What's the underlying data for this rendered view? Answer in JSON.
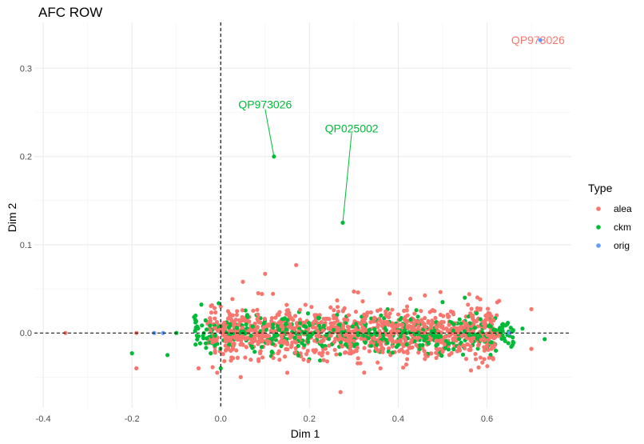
{
  "chart_data": {
    "type": "scatter",
    "title": "AFC ROW",
    "xlabel": "Dim 1",
    "ylabel": "Dim 2",
    "xlim": [
      -0.42,
      0.79
    ],
    "ylim": [
      -0.085,
      0.352
    ],
    "x_ticks": [
      -0.4,
      -0.2,
      0.0,
      0.2,
      0.4,
      0.6
    ],
    "x_tick_labels": [
      "-0.4",
      "-0.2",
      "0.0",
      "0.2",
      "0.4",
      "0.6"
    ],
    "y_ticks": [
      0.0,
      0.1,
      0.2,
      0.3
    ],
    "y_tick_labels": [
      "0.0",
      "0.1",
      "0.2",
      "0.3"
    ],
    "reference_lines": {
      "x": 0,
      "y": 0,
      "style": "dashed"
    },
    "grid": true,
    "legend": {
      "title": "Type",
      "placement": "right",
      "entries": [
        {
          "label": "alea",
          "color": "#F8766D"
        },
        {
          "label": "ckm",
          "color": "#00BA38"
        },
        {
          "label": "orig",
          "color": "#619CFF"
        }
      ]
    },
    "series": [
      {
        "name": "alea",
        "color": "#F8766D",
        "points": [
          {
            "x": -0.35,
            "y": 0.0
          },
          {
            "x": -0.19,
            "y": -0.04
          },
          {
            "x": -0.19,
            "y": 0.0
          },
          {
            "x": -0.05,
            "y": -0.04
          },
          {
            "x": 0.05,
            "y": 0.058
          },
          {
            "x": 0.1,
            "y": 0.067
          },
          {
            "x": 0.17,
            "y": 0.077
          },
          {
            "x": 0.045,
            "y": -0.05
          },
          {
            "x": 0.27,
            "y": -0.067
          },
          {
            "x": 0.56,
            "y": 0.044
          },
          {
            "x": 0.7,
            "y": 0.027
          },
          {
            "x": 0.7,
            "y": -0.018
          },
          {
            "x": 0.36,
            "y": -0.04
          },
          {
            "x": 0.15,
            "y": -0.045
          },
          {
            "x": 0.3,
            "y": 0.047
          },
          {
            "x": 0.42,
            "y": 0.03
          },
          {
            "x": 0.0,
            "y": 0.03
          }
        ]
      },
      {
        "name": "ckm",
        "color": "#00BA38",
        "points": [
          {
            "x": -0.2,
            "y": -0.023
          },
          {
            "x": -0.12,
            "y": -0.025
          },
          {
            "x": -0.06,
            "y": 0.018
          },
          {
            "x": 0.0,
            "y": -0.04
          },
          {
            "x": 0.12,
            "y": 0.2
          },
          {
            "x": 0.275,
            "y": 0.125
          },
          {
            "x": 0.5,
            "y": 0.035
          },
          {
            "x": 0.55,
            "y": 0.04
          },
          {
            "x": 0.62,
            "y": -0.02
          },
          {
            "x": 0.73,
            "y": -0.007
          },
          {
            "x": 0.68,
            "y": 0.005
          },
          {
            "x": -0.1,
            "y": 0.0
          }
        ]
      },
      {
        "name": "orig",
        "color": "#619CFF",
        "points": [
          {
            "x": -0.15,
            "y": 0.0
          },
          {
            "x": -0.13,
            "y": 0.0
          },
          {
            "x": 0.65,
            "y": 0.0
          },
          {
            "x": 0.72,
            "y": 0.332
          }
        ]
      }
    ],
    "cloud": {
      "x_center": 0.3,
      "x_spread": 0.33,
      "y_spread": 0.018,
      "alea_count": 1100,
      "ckm_count": 500
    },
    "annotations": [
      {
        "text": "QP973026",
        "x": 0.1,
        "y": 0.259,
        "point_x": 0.12,
        "point_y": 0.2,
        "color": "#00BA38"
      },
      {
        "text": "QP025002",
        "x": 0.295,
        "y": 0.232,
        "point_x": 0.275,
        "point_y": 0.125,
        "color": "#00BA38"
      },
      {
        "text": "QP973026",
        "x": 0.715,
        "y": 0.332,
        "point_x": 0.72,
        "point_y": 0.332,
        "color": "#F8766D"
      }
    ]
  }
}
